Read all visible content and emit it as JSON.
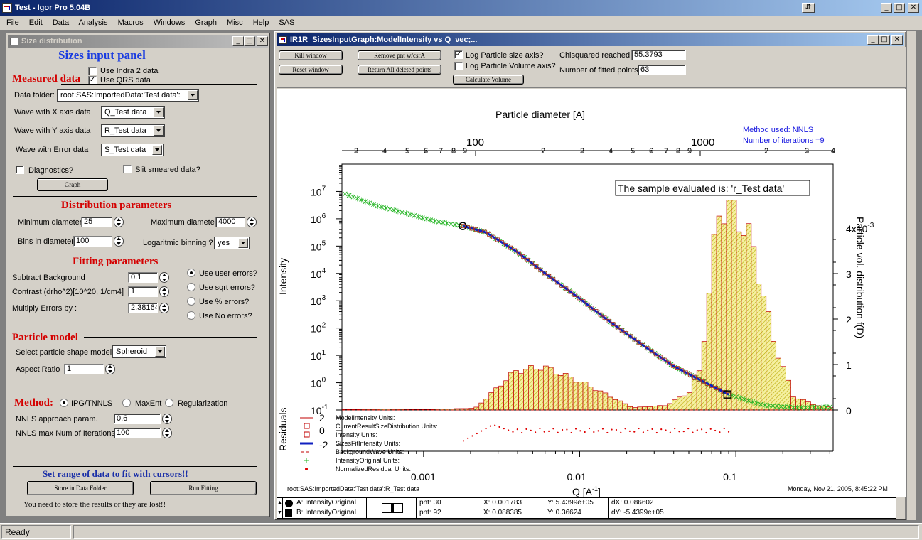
{
  "app": {
    "title": "Test - Igor Pro 5.04B",
    "status": "Ready"
  },
  "menu": [
    "File",
    "Edit",
    "Data",
    "Analysis",
    "Macros",
    "Windows",
    "Graph",
    "Misc",
    "Help",
    "SAS"
  ],
  "panel": {
    "window_title": "Size distribution",
    "heading": "Sizes input panel",
    "measured": {
      "title": "Measured data",
      "use_indra2": "Use Indra 2 data",
      "use_qrs": "Use QRS data",
      "data_folder_label": "Data folder:",
      "data_folder_value": "root:SAS:ImportedData:'Test data':",
      "wave_x_label": "Wave with X axis data",
      "wave_x_value": "Q_Test data",
      "wave_y_label": "Wave with Y axis data",
      "wave_y_value": "R_Test data",
      "wave_err_label": "Wave with Error data",
      "wave_err_value": "S_Test data",
      "diagnostics": "Diagnostics?",
      "slit": "Slit smeared data?",
      "graph_button": "Graph"
    },
    "distribution": {
      "title": "Distribution parameters",
      "min_label": "Minimum diameter",
      "min_value": "25",
      "max_label": "Maximum diameter",
      "max_value": "4000",
      "bins_label": "Bins in diameter",
      "bins_value": "100",
      "log_label": "Logaritmic binning ?",
      "log_value": "yes"
    },
    "fitting": {
      "title": "Fitting parameters",
      "bg_label": "Subtract Background",
      "bg_value": "0.1",
      "contrast_label": "Contrast (drho^2)[10^20, 1/cm4]",
      "contrast_value": "1",
      "mult_label": "Multiply Errors by :",
      "mult_value": "2.38164",
      "err_user": "Use user errors?",
      "err_sqrt": "Use sqrt errors?",
      "err_pct": "Use % errors?",
      "err_none": "Use No errors?"
    },
    "particle": {
      "title": "Particle model",
      "shape_label": "Select particle shape model",
      "shape_value": "Spheroid",
      "aspect_label": "Aspect Ratio",
      "aspect_value": "1"
    },
    "method": {
      "title": "Method:",
      "ipg": "IPG/TNNLS",
      "maxent": "MaxEnt",
      "reg": "Regularization",
      "nnls_param_label": "NNLS approach param.",
      "nnls_param_value": "0.6",
      "nnls_iter_label": "NNLS max Num of Iterations",
      "nnls_iter_value": "100"
    },
    "cursor_text": "Set range of data to fit with cursors!!",
    "store_button": "Store in Data Folder",
    "run_button": "Run Fitting",
    "warning": "You need to store the results or they are lost!!"
  },
  "graph": {
    "window_title": "IR1R_SizesInputGraph:ModelIntensity vs Q_vec;...",
    "kill": "Kill window",
    "reset": "Reset window",
    "remove_pnt": "Remove pnt w/csrA",
    "return_all": "Return All deleted points",
    "log_size": "Log Particle size axis?",
    "log_volume": "Log Particle Volume axis?",
    "calc_volume": "Calculate Volume",
    "chisq_label": "Chisquared reached",
    "chisq_value": "55.3793",
    "fitted_label": "Number of fitted points",
    "fitted_value": "63",
    "method_used": "Method used: NNLS",
    "iterations": "Number of iterations =9",
    "sample_note": "The sample evaluated is:  'r_Test data'",
    "footer_left": "root:SAS:ImportedData:'Test data':R_Test data",
    "footer_right": "Monday, Nov 21, 2005, 8:45:22 PM",
    "cursor_a": "A: IntensityOriginal",
    "cursor_b": "B: IntensityOriginal",
    "pnt_a": "pnt: 30",
    "x_a": "X: 0.001783",
    "y_a": "Y: 5.4399e+05",
    "dx": "dX: 0.086602",
    "pnt_b": "pnt: 92",
    "x_b": "X: 0.088385",
    "y_b": "Y: 0.36624",
    "dy": "dY: -5.4399e+05"
  },
  "chart_data": {
    "type": "line",
    "title": "",
    "xlabel": "Q [A^-1]",
    "ylabel": "Intensity",
    "x_scale": "log",
    "y_scale": "log",
    "xlim": [
      0.0003,
      0.42
    ],
    "ylim": [
      0.1,
      100000000.0
    ],
    "x_ticks": [
      "0.001",
      "0.01",
      "0.1"
    ],
    "y_ticks": [
      "10^-1",
      "10^0",
      "10^1",
      "10^2",
      "10^3",
      "10^4",
      "10^5",
      "10^6",
      "10^7"
    ],
    "top_axis_label": "Particle diameter [A]",
    "top_axis_ticks": [
      "100",
      "1000"
    ],
    "right_axis_label": "Particle vol. distribution f(D)",
    "right_axis_ticks": [
      "0",
      "1",
      "2",
      "3",
      "4x10^-3"
    ],
    "residuals_label": "Residuals",
    "residual_ticks": [
      "2",
      "0",
      "-2"
    ],
    "legend": [
      "ModelIntensity   Units:",
      "CurrentResultSizeDistribution   Units:",
      "Intensity   Units:",
      "SizesFitIntensity   Units:",
      "BackgroundWave   Units:",
      "IntensityOriginal   Units:",
      "NormalizedResidual   Units:"
    ],
    "series": [
      {
        "name": "IntensityOriginal",
        "x": [
          0.0003,
          0.0005,
          0.0008,
          0.0012,
          0.0018,
          0.0025,
          0.004,
          0.006,
          0.01,
          0.015,
          0.025,
          0.04,
          0.06,
          0.09,
          0.15,
          0.25,
          0.4
        ],
        "y": [
          9000000,
          3000000,
          1500000,
          800000,
          540000,
          320000,
          60000,
          10000,
          1200,
          200,
          25,
          4,
          1.2,
          0.37,
          0.15,
          0.12,
          0.13
        ]
      },
      {
        "name": "SizesFitIntensity",
        "x": [
          0.0018,
          0.0025,
          0.004,
          0.006,
          0.01,
          0.015,
          0.025,
          0.04,
          0.06,
          0.09
        ],
        "y": [
          540000,
          320000,
          60000,
          10000,
          1200,
          200,
          25,
          4,
          1.2,
          0.37
        ]
      },
      {
        "name": "CurrentResultSizeDistribution",
        "diameter": [
          25,
          40,
          60,
          100,
          150,
          200,
          300,
          500,
          700,
          900,
          1000,
          1100,
          1200,
          1400,
          1700,
          2100,
          2600,
          3300,
          4000
        ],
        "values": [
          1e-05,
          2e-05,
          1e-05,
          4e-05,
          0.00085,
          0.00095,
          0.0006,
          5e-05,
          0.0001,
          0.0004,
          0.0009,
          0.0026,
          0.0044,
          0.0044,
          0.0037,
          0.0016,
          0.0003,
          0.0001,
          5e-05
        ]
      }
    ]
  }
}
